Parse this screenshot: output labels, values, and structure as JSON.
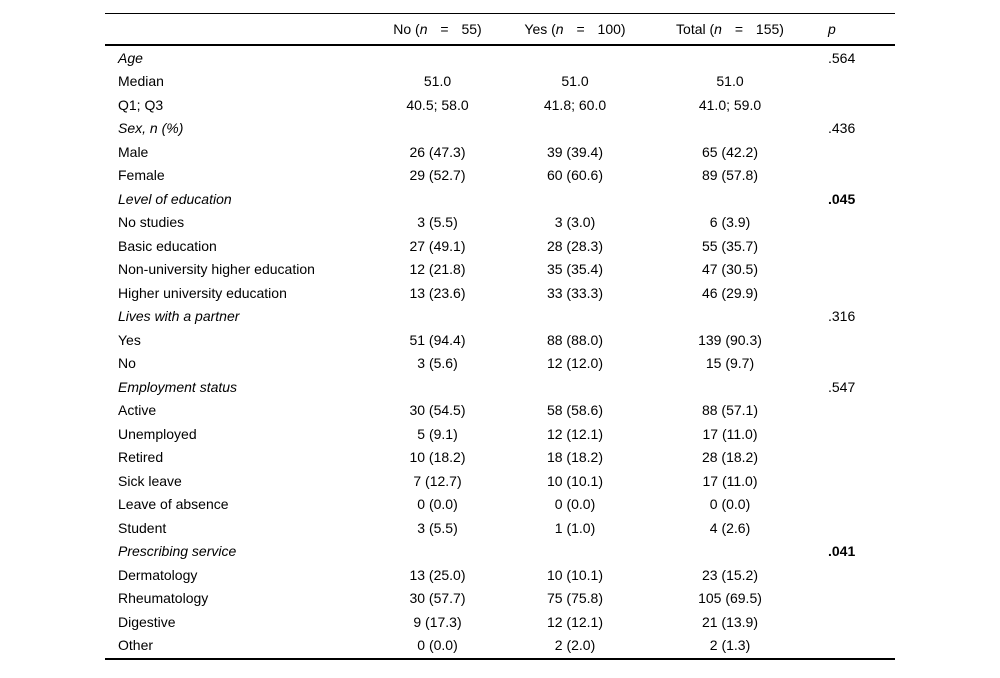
{
  "table": {
    "header": {
      "row_label": "",
      "columns": [
        {
          "pre": "No (",
          "n": "n",
          "post": " = 55)"
        },
        {
          "pre": "Yes (",
          "n": "n",
          "post": " = 100)"
        },
        {
          "pre": "Total (",
          "n": "n",
          "post": " = 155)"
        }
      ],
      "p_label": "p"
    },
    "rows": [
      {
        "type": "category",
        "label": "Age",
        "no": "",
        "yes": "",
        "total": "",
        "p": ".564",
        "p_bold": false
      },
      {
        "type": "data",
        "label": "Median",
        "no": "51.0",
        "yes": "51.0",
        "total": "51.0",
        "p": "",
        "p_bold": false
      },
      {
        "type": "data",
        "label": "Q1; Q3",
        "no": "40.5; 58.0",
        "yes": "41.8; 60.0",
        "total": "41.0; 59.0",
        "p": "",
        "p_bold": false
      },
      {
        "type": "category",
        "label": "Sex, n (%)",
        "no": "",
        "yes": "",
        "total": "",
        "p": ".436",
        "p_bold": false
      },
      {
        "type": "data",
        "label": "Male",
        "no": "26 (47.3)",
        "yes": "39 (39.4)",
        "total": "65 (42.2)",
        "p": "",
        "p_bold": false
      },
      {
        "type": "data",
        "label": "Female",
        "no": "29 (52.7)",
        "yes": "60 (60.6)",
        "total": "89 (57.8)",
        "p": "",
        "p_bold": false
      },
      {
        "type": "category",
        "label": "Level of education",
        "no": "",
        "yes": "",
        "total": "",
        "p": ".045",
        "p_bold": true
      },
      {
        "type": "data",
        "label": "No studies",
        "no": "3 (5.5)",
        "yes": "3 (3.0)",
        "total": "6 (3.9)",
        "p": "",
        "p_bold": false
      },
      {
        "type": "data",
        "label": "Basic education",
        "no": "27 (49.1)",
        "yes": "28 (28.3)",
        "total": "55 (35.7)",
        "p": "",
        "p_bold": false
      },
      {
        "type": "data",
        "label": "Non-university higher education",
        "no": "12 (21.8)",
        "yes": "35 (35.4)",
        "total": "47 (30.5)",
        "p": "",
        "p_bold": false
      },
      {
        "type": "data",
        "label": "Higher university education",
        "no": "13 (23.6)",
        "yes": "33 (33.3)",
        "total": "46 (29.9)",
        "p": "",
        "p_bold": false
      },
      {
        "type": "category",
        "label": "Lives with a partner",
        "no": "",
        "yes": "",
        "total": "",
        "p": ".316",
        "p_bold": false
      },
      {
        "type": "data",
        "label": "Yes",
        "no": "51 (94.4)",
        "yes": "88 (88.0)",
        "total": "139 (90.3)",
        "p": "",
        "p_bold": false
      },
      {
        "type": "data",
        "label": "No",
        "no": "3 (5.6)",
        "yes": "12 (12.0)",
        "total": "15 (9.7)",
        "p": "",
        "p_bold": false
      },
      {
        "type": "category",
        "label": "Employment status",
        "no": "",
        "yes": "",
        "total": "",
        "p": ".547",
        "p_bold": false
      },
      {
        "type": "data",
        "label": "Active",
        "no": "30 (54.5)",
        "yes": "58 (58.6)",
        "total": "88 (57.1)",
        "p": "",
        "p_bold": false
      },
      {
        "type": "data",
        "label": "Unemployed",
        "no": "5 (9.1)",
        "yes": "12 (12.1)",
        "total": "17 (11.0)",
        "p": "",
        "p_bold": false
      },
      {
        "type": "data",
        "label": "Retired",
        "no": "10 (18.2)",
        "yes": "18 (18.2)",
        "total": "28 (18.2)",
        "p": "",
        "p_bold": false
      },
      {
        "type": "data",
        "label": "Sick leave",
        "no": "7 (12.7)",
        "yes": "10 (10.1)",
        "total": "17 (11.0)",
        "p": "",
        "p_bold": false
      },
      {
        "type": "data",
        "label": "Leave of absence",
        "no": "0 (0.0)",
        "yes": "0 (0.0)",
        "total": "0 (0.0)",
        "p": "",
        "p_bold": false
      },
      {
        "type": "data",
        "label": "Student",
        "no": "3 (5.5)",
        "yes": "1 (1.0)",
        "total": "4 (2.6)",
        "p": "",
        "p_bold": false
      },
      {
        "type": "category",
        "label": "Prescribing service",
        "no": "",
        "yes": "",
        "total": "",
        "p": ".041",
        "p_bold": true
      },
      {
        "type": "data",
        "label": "Dermatology",
        "no": "13 (25.0)",
        "yes": "10 (10.1)",
        "total": "23 (15.2)",
        "p": "",
        "p_bold": false
      },
      {
        "type": "data",
        "label": "Rheumatology",
        "no": "30 (57.7)",
        "yes": "75 (75.8)",
        "total": "105 (69.5)",
        "p": "",
        "p_bold": false
      },
      {
        "type": "data",
        "label": "Digestive",
        "no": "9 (17.3)",
        "yes": "12 (12.1)",
        "total": "21 (13.9)",
        "p": "",
        "p_bold": false
      },
      {
        "type": "data",
        "label": "Other",
        "no": "0 (0.0)",
        "yes": "2 (2.0)",
        "total": "2 (1.3)",
        "p": "",
        "p_bold": false
      }
    ]
  }
}
